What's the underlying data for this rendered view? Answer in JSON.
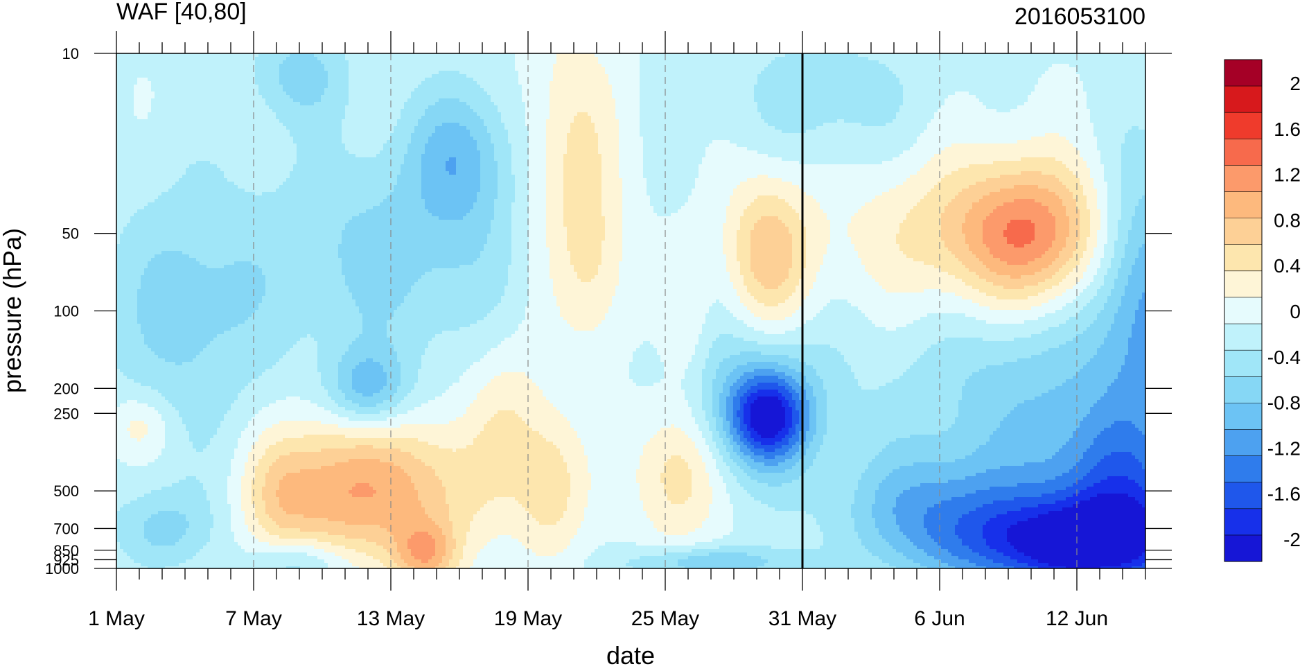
{
  "chart_data": {
    "type": "heatmap",
    "title_left": "WAF [40,80]",
    "title_right": "2016053100",
    "xlabel": "date",
    "ylabel": "pressure (hPa)",
    "x_tick_labels": [
      "1 May",
      "7 May",
      "13 May",
      "19 May",
      "25 May",
      "31 May",
      "6 Jun",
      "12 Jun"
    ],
    "x_tick_days": [
      0,
      6,
      12,
      18,
      24,
      30,
      36,
      42
    ],
    "x_range_days": [
      0,
      45
    ],
    "y_tick_labels": [
      "10",
      "50",
      "100",
      "200",
      "250",
      "500",
      "700",
      "850",
      "925",
      "1000"
    ],
    "y_tick_values": [
      10,
      50,
      100,
      200,
      250,
      500,
      700,
      850,
      925,
      1000
    ],
    "y_scale": "log-pressure (reversed)",
    "y_range": [
      1000,
      10
    ],
    "colorbar_labels": [
      "2",
      "1.6",
      "1.2",
      "0.8",
      "0.4",
      "0",
      "-0.4",
      "-0.8",
      "-1.2",
      "-1.6",
      "-2"
    ],
    "colorbar_colors": [
      "#a50026",
      "#d7191c",
      "#ef3b2c",
      "#f76a4c",
      "#fc9a6b",
      "#fdb97d",
      "#fdd096",
      "#fde6ae",
      "#fef5d7",
      "#e6fbfd",
      "#c0f2fb",
      "#a0e6f8",
      "#86d7f5",
      "#6cc3f4",
      "#4da1f0",
      "#2f7cec",
      "#1f57eb",
      "#1730ea",
      "#1616d6"
    ],
    "colorbar_levels": [
      -2.2,
      -2.0,
      -1.8,
      -1.6,
      -1.4,
      -1.2,
      -1.0,
      -0.8,
      -0.6,
      -0.4,
      -0.2,
      0,
      0.2,
      0.4,
      0.6,
      0.8,
      1.0,
      1.2,
      1.6,
      2.2
    ],
    "vertical_reference_line_day": 30,
    "grid": "dashed vertical lines at x ticks"
  }
}
